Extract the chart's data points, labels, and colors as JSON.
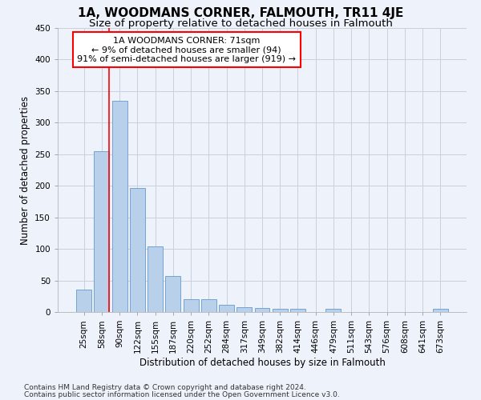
{
  "title": "1A, WOODMANS CORNER, FALMOUTH, TR11 4JE",
  "subtitle": "Size of property relative to detached houses in Falmouth",
  "xlabel": "Distribution of detached houses by size in Falmouth",
  "ylabel": "Number of detached properties",
  "footnote1": "Contains HM Land Registry data © Crown copyright and database right 2024.",
  "footnote2": "Contains public sector information licensed under the Open Government Licence v3.0.",
  "categories": [
    "25sqm",
    "58sqm",
    "90sqm",
    "122sqm",
    "155sqm",
    "187sqm",
    "220sqm",
    "252sqm",
    "284sqm",
    "317sqm",
    "349sqm",
    "382sqm",
    "414sqm",
    "446sqm",
    "479sqm",
    "511sqm",
    "543sqm",
    "576sqm",
    "608sqm",
    "641sqm",
    "673sqm"
  ],
  "values": [
    35,
    255,
    335,
    197,
    104,
    57,
    20,
    20,
    11,
    8,
    6,
    5,
    5,
    0,
    5,
    0,
    0,
    0,
    0,
    0,
    5
  ],
  "bar_color": "#b8d0ea",
  "bar_edge_color": "#6699cc",
  "annotation_box_text": "1A WOODMANS CORNER: 71sqm\n← 9% of detached houses are smaller (94)\n91% of semi-detached houses are larger (919) →",
  "annotation_box_color": "red",
  "vline_x": 1.42,
  "vline_color": "red",
  "ylim": [
    0,
    450
  ],
  "yticks": [
    0,
    50,
    100,
    150,
    200,
    250,
    300,
    350,
    400,
    450
  ],
  "bg_color": "#eef2fb",
  "axes_bg_color": "#eef2fb",
  "grid_color": "#c8d0e0",
  "title_fontsize": 11,
  "subtitle_fontsize": 9.5,
  "label_fontsize": 8.5,
  "tick_fontsize": 7.5,
  "annot_fontsize": 8,
  "footnote_fontsize": 6.5
}
